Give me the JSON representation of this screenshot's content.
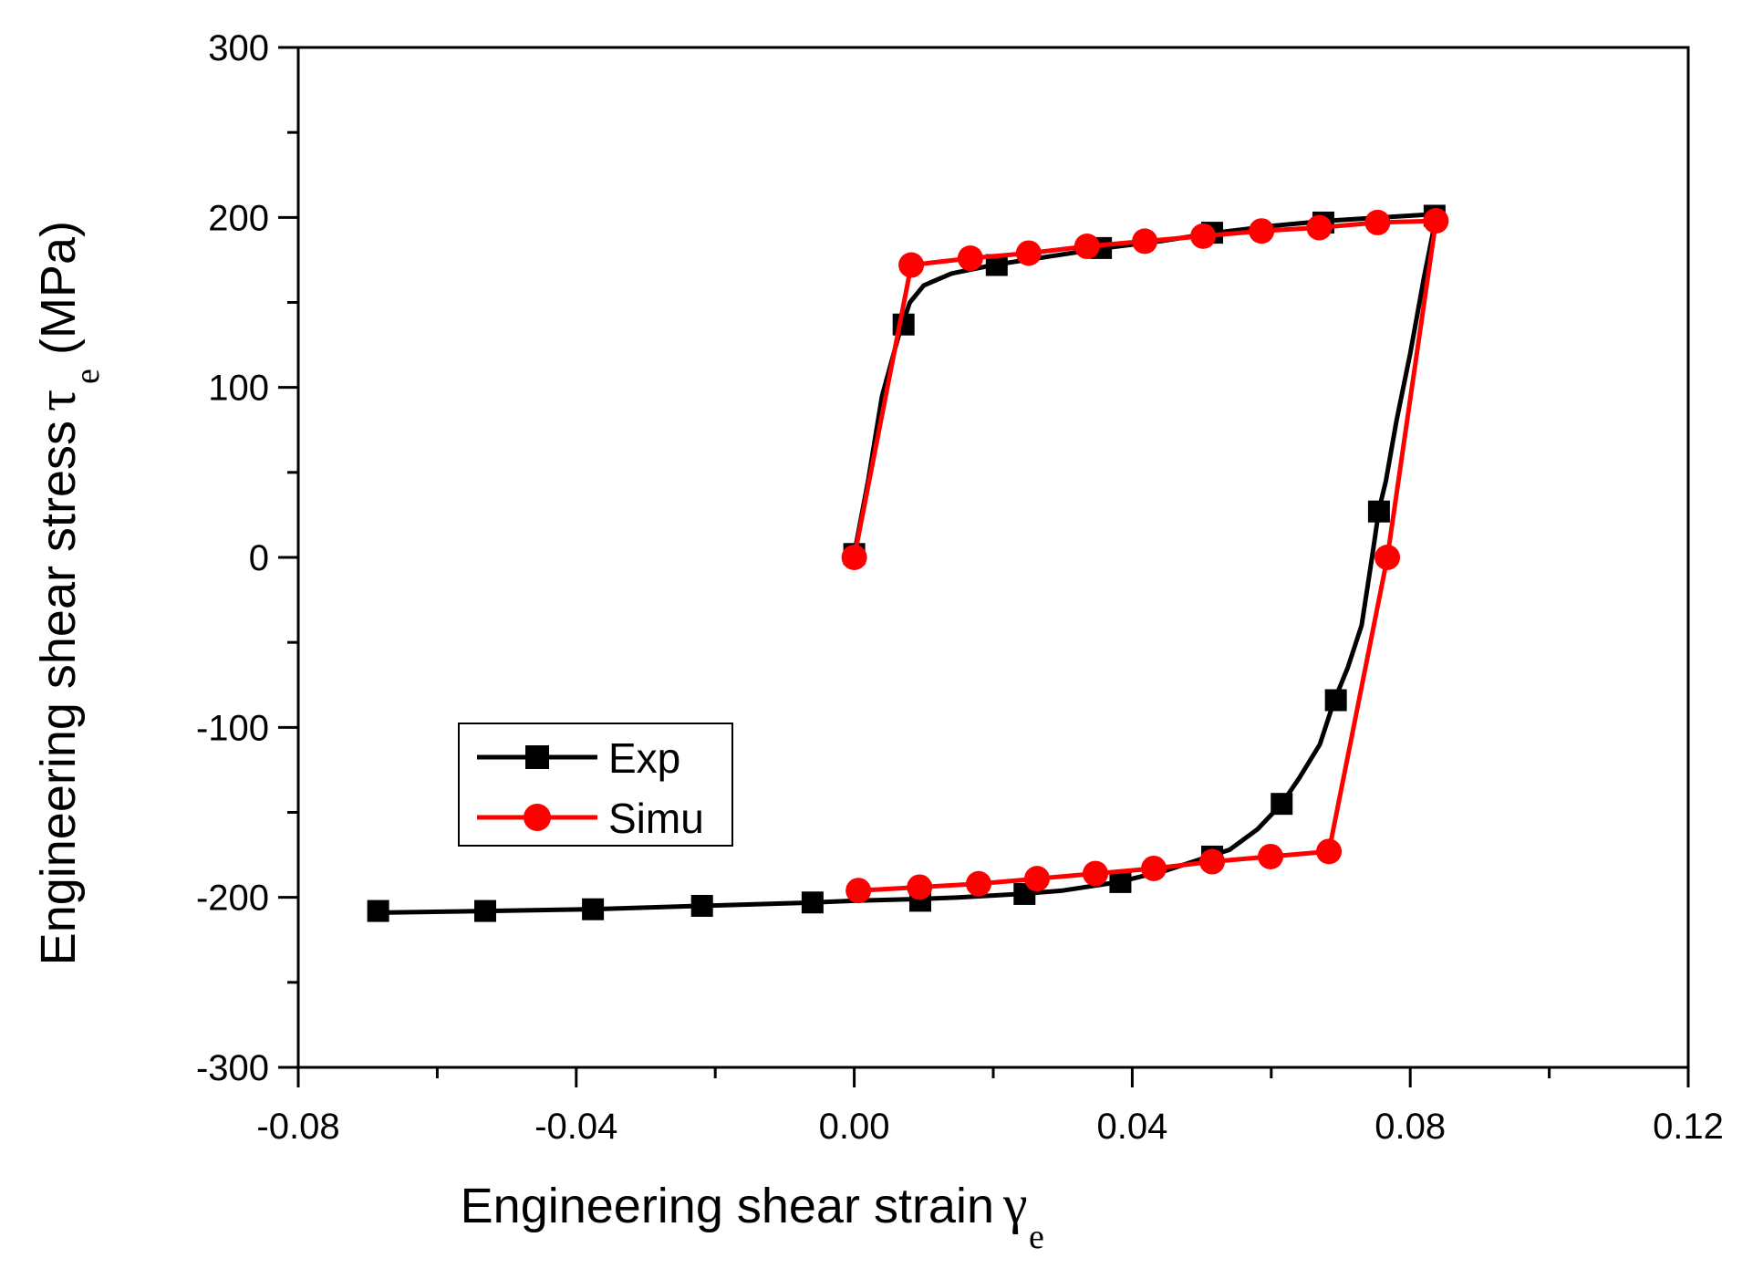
{
  "chart_data": {
    "type": "line",
    "title": "",
    "xlabel": "Engineering shear strain",
    "xlabel_symbol": "γ",
    "xlabel_subscript": "e",
    "ylabel": "Engineering shear stress",
    "ylabel_symbol": "τ",
    "ylabel_subscript": "e",
    "ylabel_unit": "(MPa)",
    "xlim": [
      -0.08,
      0.12
    ],
    "ylim": [
      -300,
      300
    ],
    "xticks": [
      -0.08,
      -0.04,
      0.0,
      0.04,
      0.08,
      0.12
    ],
    "xtick_labels": [
      "-0.08",
      "-0.04",
      "0.00",
      "0.04",
      "0.08",
      "0.12"
    ],
    "yticks": [
      300,
      200,
      100,
      0,
      -100,
      -200,
      -300
    ],
    "ytick_labels": [
      "300",
      "200",
      "100",
      "0",
      "-100",
      "-200",
      "-300"
    ],
    "grid": false,
    "legend_position": "lower-left",
    "series": [
      {
        "name": "Exp",
        "color": "#000000",
        "marker": "square",
        "curve": [
          [
            0.0,
            2
          ],
          [
            0.002,
            45
          ],
          [
            0.004,
            95
          ],
          [
            0.0065,
            132
          ],
          [
            0.008,
            150
          ],
          [
            0.01,
            160
          ],
          [
            0.014,
            167
          ],
          [
            0.02,
            172
          ],
          [
            0.028,
            177
          ],
          [
            0.036,
            182
          ],
          [
            0.044,
            186
          ],
          [
            0.052,
            191
          ],
          [
            0.06,
            195
          ],
          [
            0.068,
            198
          ],
          [
            0.076,
            200
          ],
          [
            0.0838,
            202
          ],
          [
            0.082,
            165
          ],
          [
            0.08,
            120
          ],
          [
            0.078,
            80
          ],
          [
            0.0765,
            45
          ],
          [
            0.0755,
            28
          ],
          [
            0.0745,
            0
          ],
          [
            0.073,
            -40
          ],
          [
            0.071,
            -65
          ],
          [
            0.069,
            -85
          ],
          [
            0.067,
            -110
          ],
          [
            0.064,
            -130
          ],
          [
            0.0615,
            -145
          ],
          [
            0.058,
            -160
          ],
          [
            0.054,
            -172
          ],
          [
            0.051,
            -176
          ],
          [
            0.045,
            -184
          ],
          [
            0.038,
            -191
          ],
          [
            0.03,
            -196
          ],
          [
            0.024,
            -198
          ],
          [
            0.015,
            -200
          ],
          [
            0.009,
            -201
          ],
          [
            0.0,
            -202
          ],
          [
            -0.006,
            -203
          ],
          [
            -0.022,
            -205
          ],
          [
            -0.038,
            -207
          ],
          [
            -0.053,
            -208
          ],
          [
            -0.068,
            -209
          ]
        ],
        "markers": [
          [
            0.0,
            2
          ],
          [
            0.0071,
            137
          ],
          [
            0.0205,
            172
          ],
          [
            0.0355,
            182
          ],
          [
            0.0515,
            191
          ],
          [
            0.0675,
            197
          ],
          [
            0.0835,
            201
          ],
          [
            0.0755,
            27
          ],
          [
            0.0693,
            -84
          ],
          [
            0.0615,
            -145
          ],
          [
            0.0515,
            -176
          ],
          [
            0.0383,
            -191
          ],
          [
            0.0245,
            -198
          ],
          [
            0.0095,
            -202
          ],
          [
            -0.006,
            -203
          ],
          [
            -0.0219,
            -205
          ],
          [
            -0.0376,
            -207
          ],
          [
            -0.0531,
            -208
          ],
          [
            -0.0685,
            -208
          ]
        ]
      },
      {
        "name": "Simu",
        "color": "#ff0000",
        "marker": "circle",
        "curve": [
          [
            0.0,
            0
          ],
          [
            0.0082,
            172
          ],
          [
            0.0167,
            176
          ],
          [
            0.0251,
            179
          ],
          [
            0.0335,
            183
          ],
          [
            0.0418,
            186
          ],
          [
            0.0502,
            189
          ],
          [
            0.0586,
            192
          ],
          [
            0.0669,
            194
          ],
          [
            0.0753,
            197
          ],
          [
            0.0837,
            198
          ],
          [
            0.0767,
            0
          ],
          [
            0.0683,
            -173
          ],
          [
            0.0599,
            -176
          ],
          [
            0.0515,
            -179
          ],
          [
            0.0431,
            -183
          ],
          [
            0.0347,
            -186
          ],
          [
            0.0263,
            -189
          ],
          [
            0.0179,
            -192
          ],
          [
            0.0094,
            -194
          ],
          [
            0.0006,
            -196
          ]
        ],
        "markers": [
          [
            0.0,
            0
          ],
          [
            0.0082,
            172
          ],
          [
            0.0167,
            176
          ],
          [
            0.0251,
            179
          ],
          [
            0.0335,
            183
          ],
          [
            0.0418,
            186
          ],
          [
            0.0502,
            189
          ],
          [
            0.0586,
            192
          ],
          [
            0.0669,
            194
          ],
          [
            0.0753,
            197
          ],
          [
            0.0837,
            198
          ],
          [
            0.0767,
            0
          ],
          [
            0.0683,
            -173
          ],
          [
            0.0599,
            -176
          ],
          [
            0.0515,
            -179
          ],
          [
            0.0431,
            -183
          ],
          [
            0.0347,
            -186
          ],
          [
            0.0263,
            -189
          ],
          [
            0.0179,
            -192
          ],
          [
            0.0094,
            -194
          ],
          [
            0.0006,
            -196
          ]
        ]
      }
    ]
  }
}
